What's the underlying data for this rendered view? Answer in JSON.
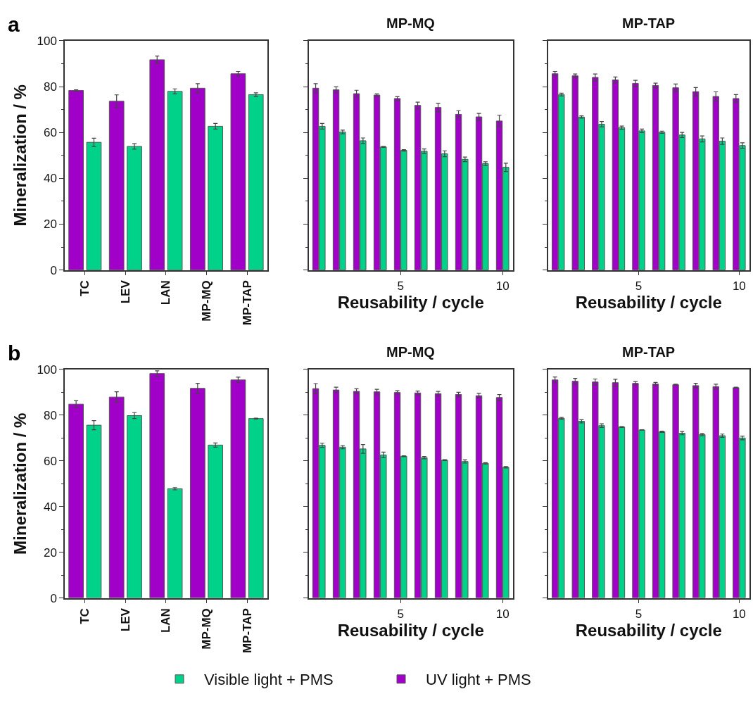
{
  "chart_data": [
    {
      "type": "bar",
      "ylabel": "Mineralization / %",
      "annotations": [
        "a"
      ],
      "categories": [
        "TC",
        "LEV",
        "LAN",
        "MP-MQ",
        "MP-TAP"
      ],
      "ylim": [
        0,
        100
      ],
      "yticks": [
        0,
        20,
        40,
        60,
        80,
        100
      ],
      "legend": "bottom",
      "series": [
        {
          "name": "UV light + PMS",
          "color": "#a000c8",
          "values": [
            78.3,
            73.6,
            91.7,
            79.3,
            85.6
          ],
          "errors": [
            0.3,
            2.8,
            1.6,
            2,
            1
          ]
        },
        {
          "name": "Visible light + PMS",
          "color": "#00d28a",
          "values": [
            55.7,
            53.9,
            77.9,
            62.7,
            76.5
          ],
          "errors": [
            1.8,
            1.2,
            1.1,
            1.2,
            0.8
          ]
        }
      ]
    },
    {
      "type": "bar",
      "title": "MP-MQ",
      "xlabel": "Reusability / cycle",
      "x": [
        1,
        2,
        3,
        4,
        5,
        6,
        7,
        8,
        9,
        10
      ],
      "xlim": [
        0.5,
        10.5
      ],
      "xticks": [
        5,
        10
      ],
      "ylim": [
        0,
        100
      ],
      "yticks": [
        0,
        20,
        40,
        60,
        80,
        100
      ],
      "tick_labels": "x",
      "series": [
        {
          "color": "#a000c8",
          "values": [
            79.3,
            78.6,
            76.9,
            76.3,
            74.8,
            71.8,
            70.9,
            67.9,
            66.8,
            65.0
          ],
          "errors": [
            2,
            1.3,
            1.5,
            0.5,
            0.8,
            1.4,
            1.8,
            1.6,
            1.5,
            2.5
          ]
        },
        {
          "color": "#00d28a",
          "values": [
            62.7,
            60.2,
            56.4,
            53.7,
            52.2,
            51.8,
            50.7,
            48.3,
            46.4,
            44.8
          ],
          "errors": [
            1.2,
            0.8,
            1.2,
            0.2,
            0.3,
            1,
            1.3,
            1,
            0.8,
            1.8
          ]
        }
      ]
    },
    {
      "type": "bar",
      "title": "MP-TAP",
      "xlabel": "Reusability / cycle",
      "x": [
        1,
        2,
        3,
        4,
        5,
        6,
        7,
        8,
        9,
        10
      ],
      "xlim": [
        0.5,
        10.5
      ],
      "xticks": [
        5,
        10
      ],
      "ylim": [
        0,
        100
      ],
      "yticks": [
        0,
        20,
        40,
        60,
        80,
        100
      ],
      "tick_labels": "x",
      "series": [
        {
          "color": "#a000c8",
          "values": [
            85.6,
            84.7,
            84.0,
            82.9,
            81.4,
            80.5,
            79.5,
            77.8,
            75.7,
            74.8
          ],
          "errors": [
            1,
            0.8,
            1.5,
            1.3,
            1.3,
            1,
            1.6,
            1.8,
            2,
            1.7
          ]
        },
        {
          "color": "#00d28a",
          "values": [
            76.5,
            66.7,
            63.6,
            62.1,
            60.7,
            60.1,
            58.9,
            57.2,
            56.2,
            54.3
          ],
          "errors": [
            0.6,
            0.5,
            1.2,
            0.7,
            0.8,
            0.5,
            1.1,
            1.3,
            1.4,
            1.2
          ]
        }
      ]
    },
    {
      "type": "bar",
      "ylabel": "Mineralization / %",
      "annotations": [
        "b"
      ],
      "categories": [
        "TC",
        "LEV",
        "LAN",
        "MP-MQ",
        "MP-TAP"
      ],
      "ylim": [
        0,
        100
      ],
      "yticks": [
        0,
        20,
        40,
        60,
        80,
        100
      ],
      "series": [
        {
          "color": "#a000c8",
          "values": [
            84.8,
            87.9,
            98.2,
            91.7,
            95.4
          ],
          "errors": [
            1.5,
            2.3,
            1.2,
            2.2,
            1.2
          ]
        },
        {
          "color": "#00d28a",
          "values": [
            75.6,
            79.8,
            47.8,
            66.9,
            78.5
          ],
          "errors": [
            2,
            1.3,
            0.5,
            0.9,
            0.2
          ]
        }
      ]
    },
    {
      "type": "bar",
      "title": "MP-MQ",
      "xlabel": "Reusability / cycle",
      "x": [
        1,
        2,
        3,
        4,
        5,
        6,
        7,
        8,
        9,
        10
      ],
      "xlim": [
        0.5,
        10.5
      ],
      "xticks": [
        5,
        10
      ],
      "ylim": [
        0,
        100
      ],
      "yticks": [
        0,
        20,
        40,
        60,
        80,
        100
      ],
      "tick_labels": "x",
      "series": [
        {
          "color": "#a000c8",
          "values": [
            91.6,
            91.0,
            90.4,
            90.2,
            89.9,
            89.7,
            89.4,
            89.0,
            88.5,
            87.7
          ],
          "errors": [
            2.2,
            1.2,
            1.1,
            1.1,
            0.8,
            0.8,
            1,
            1,
            1,
            1.3
          ]
        },
        {
          "color": "#00d28a",
          "values": [
            66.8,
            66.0,
            65.2,
            62.6,
            62.0,
            61.4,
            60.3,
            59.7,
            58.9,
            57.2
          ],
          "errors": [
            0.9,
            0.7,
            1.9,
            1.2,
            0.2,
            0.5,
            0.2,
            0.7,
            0.3,
            0.3
          ]
        }
      ]
    },
    {
      "type": "bar",
      "title": "MP-TAP",
      "xlabel": "Reusability / cycle",
      "x": [
        1,
        2,
        3,
        4,
        5,
        6,
        7,
        8,
        9,
        10
      ],
      "xlim": [
        0.5,
        10.5
      ],
      "xticks": [
        5,
        10
      ],
      "ylim": [
        0,
        100
      ],
      "yticks": [
        0,
        20,
        40,
        60,
        80,
        100
      ],
      "tick_labels": "x",
      "series": [
        {
          "color": "#a000c8",
          "values": [
            95.4,
            94.8,
            94.5,
            94.2,
            93.9,
            93.6,
            93.3,
            92.9,
            92.5,
            92.0
          ],
          "errors": [
            1.3,
            1.3,
            1.3,
            1.5,
            0.8,
            0.7,
            0.2,
            1,
            1,
            0.2
          ]
        },
        {
          "color": "#00d28a",
          "values": [
            78.6,
            77.3,
            75.4,
            74.8,
            73.5,
            72.7,
            72.1,
            71.5,
            71.0,
            70.0
          ],
          "errors": [
            0.4,
            0.7,
            0.8,
            0.2,
            0.1,
            0.3,
            0.7,
            0.5,
            0.7,
            0.8
          ]
        }
      ]
    }
  ]
}
